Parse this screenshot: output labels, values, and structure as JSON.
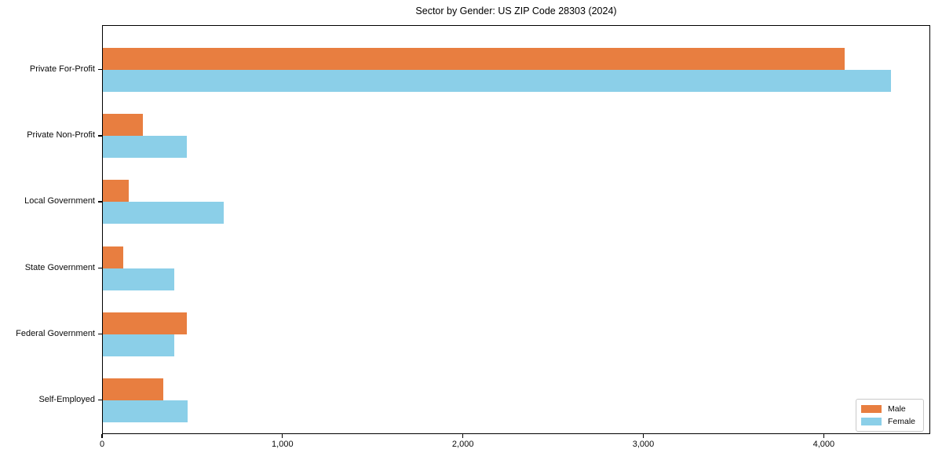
{
  "figure": {
    "background": "#ffffff"
  },
  "chart_data": {
    "type": "bar",
    "orientation": "horizontal",
    "title": "Sector by Gender: US ZIP Code 28303 (2024)",
    "categories": [
      "Private For-Profit",
      "Private Non-Profit",
      "Local Government",
      "State Government",
      "Federal Government",
      "Self-Employed"
    ],
    "series": [
      {
        "name": "Male",
        "color": "#e87e40",
        "values": [
          4110,
          220,
          143,
          112,
          465,
          335
        ]
      },
      {
        "name": "Female",
        "color": "#8bcfe8",
        "values": [
          4370,
          465,
          670,
          397,
          397,
          468
        ]
      }
    ],
    "xlabel": "",
    "ylabel": "",
    "xlim": [
      0,
      4590
    ],
    "xticks": [
      0,
      1000,
      2000,
      3000,
      4000
    ],
    "xtick_labels": [
      "0",
      "1,000",
      "2,000",
      "3,000",
      "4,000"
    ],
    "grid": false,
    "legend": {
      "position": "lower-right",
      "entries": [
        "Male",
        "Female"
      ]
    }
  }
}
